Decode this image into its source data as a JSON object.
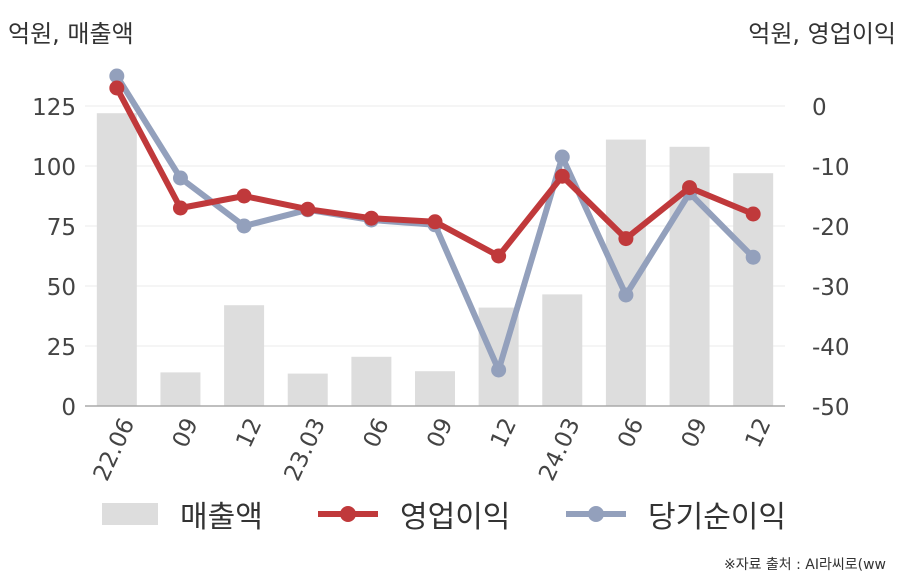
{
  "left_unit": "억원, 매출액",
  "right_unit": "억원, 영업이익",
  "source": "※자료 출처 : AI라씨로(ww",
  "colors": {
    "revenue": "#dddddd",
    "operating_profit": "#c0393b",
    "net_income": "#93a0bc"
  },
  "chart_data": {
    "type": "bar+line",
    "categories": [
      "22.06",
      "09",
      "12",
      "23.03",
      "06",
      "09",
      "12",
      "24.03",
      "06",
      "09",
      "12"
    ],
    "y_left": {
      "ylim": [
        0,
        130
      ],
      "ticks": [
        0,
        25,
        50,
        75,
        100,
        125
      ]
    },
    "y_right": {
      "ylim": [
        -50,
        5
      ],
      "ticks": [
        0,
        -10,
        -20,
        -30,
        -40,
        -50
      ]
    },
    "grid": true,
    "legend_position": "bottom",
    "series": [
      {
        "name": "매출액",
        "type": "bar",
        "axis": "left",
        "color": "#dddddd",
        "values": [
          122,
          14,
          42,
          13.5,
          20.5,
          14.5,
          41,
          46.5,
          111,
          108,
          97
        ]
      },
      {
        "name": "영업이익",
        "type": "line",
        "axis": "right",
        "color": "#c0393b",
        "values": [
          3,
          -17,
          -15,
          -17.2,
          -18.7,
          -19.3,
          -25,
          -11.7,
          -22.1,
          -13.6,
          -18
        ]
      },
      {
        "name": "당기순이익",
        "type": "line",
        "axis": "right",
        "color": "#93a0bc",
        "values": [
          5,
          -12,
          -20,
          -17.3,
          -19,
          -19.8,
          -44,
          -8.5,
          -31.5,
          -14.5,
          -25.2
        ]
      }
    ]
  }
}
